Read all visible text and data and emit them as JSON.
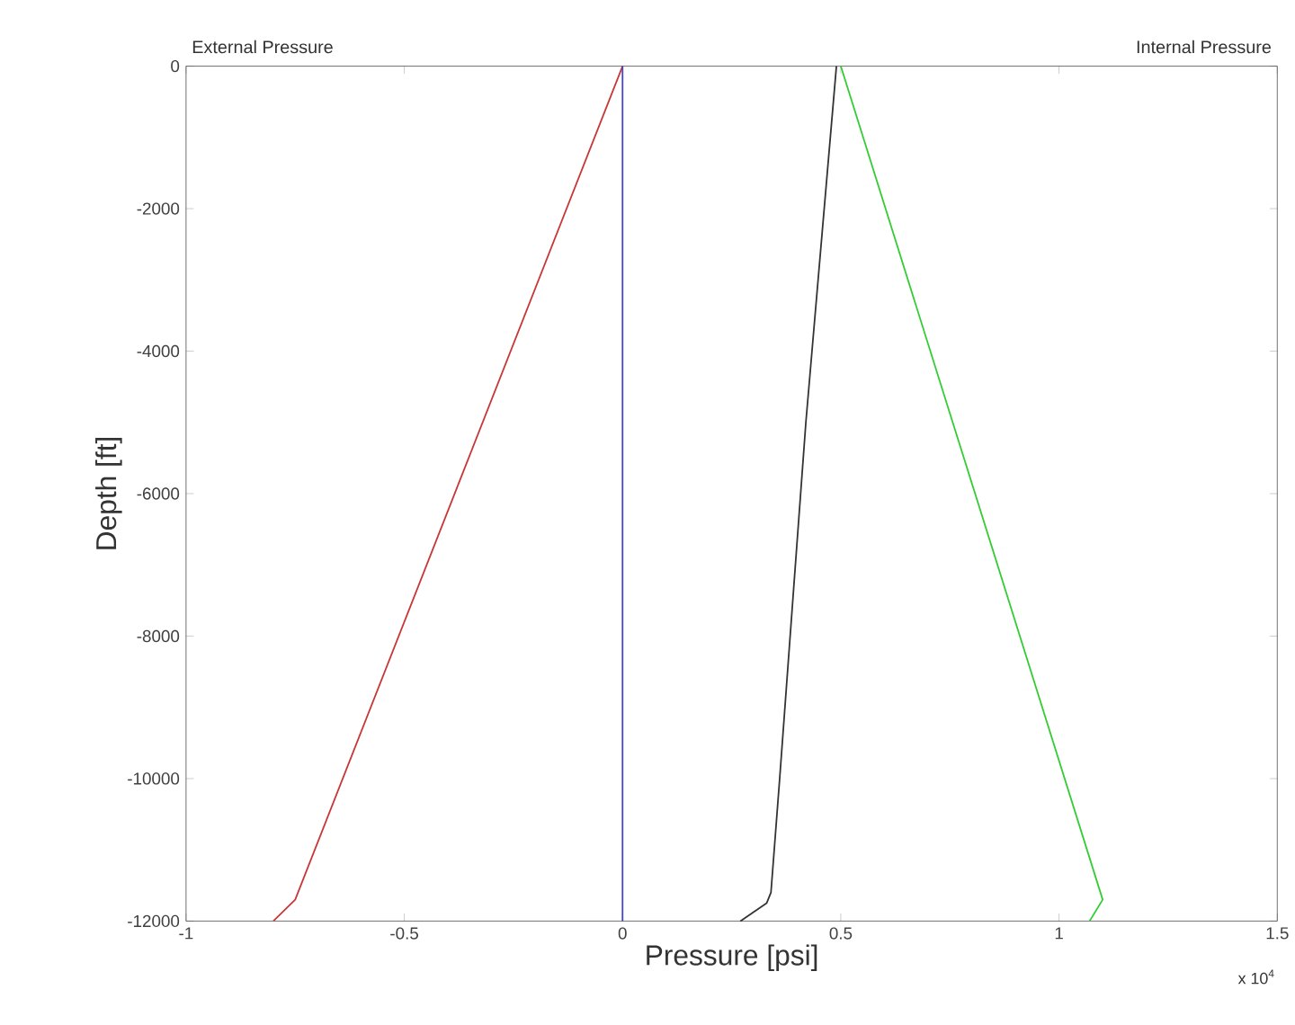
{
  "chart_data": {
    "type": "line",
    "xlabel": "Pressure [psi]",
    "ylabel": "Depth [ft]",
    "annotations": [
      "External Pressure",
      "Internal Pressure",
      "x 10$^{4}$"
    ],
    "xlim": [
      -1,
      1.5
    ],
    "ylim": [
      -12000,
      0
    ],
    "xticks": [
      -1,
      -0.5,
      0,
      0.5,
      1,
      1.5
    ],
    "yticks": [
      -12000,
      -10000,
      -8000,
      -6000,
      -4000,
      -2000,
      0
    ],
    "series": [
      {
        "color": "#c83737",
        "x": [
          0,
          -0.75,
          -0.8
        ],
        "values": [
          0,
          -11700,
          -12000
        ]
      },
      {
        "color": "#4444cc",
        "x": [
          0,
          0
        ],
        "values": [
          0,
          -12000
        ]
      },
      {
        "color": "#333333",
        "x": [
          0.49,
          0.42,
          0.36,
          0.34,
          0.33,
          0.27
        ],
        "values": [
          0,
          -5000,
          -10000,
          -11600,
          -11750,
          -12000
        ]
      },
      {
        "color": "#33cc33",
        "x": [
          0.5,
          1.1,
          1.07
        ],
        "values": [
          0,
          -11700,
          -12000
        ]
      }
    ]
  }
}
